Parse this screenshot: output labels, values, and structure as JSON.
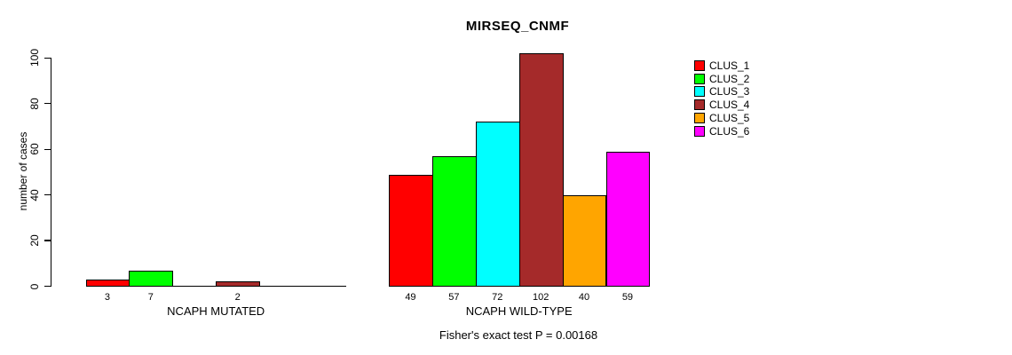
{
  "chart_data": {
    "type": "bar",
    "title": "MIRSEQ_CNMF",
    "ylabel": "number of cases",
    "ylim": [
      0,
      110
    ],
    "yticks": [
      0,
      20,
      40,
      60,
      80,
      100
    ],
    "grid": false,
    "legend_position": "right-outside",
    "legend": [
      {
        "label": "CLUS_1",
        "color": "#FF0000"
      },
      {
        "label": "CLUS_2",
        "color": "#00FF00"
      },
      {
        "label": "CLUS_3",
        "color": "#00FFFF"
      },
      {
        "label": "CLUS_4",
        "color": "#A52A2A"
      },
      {
        "label": "CLUS_5",
        "color": "#FFA500"
      },
      {
        "label": "CLUS_6",
        "color": "#FF00FF"
      }
    ],
    "groups": [
      {
        "label": "NCAPH MUTATED",
        "values": [
          3,
          7,
          0,
          2,
          0,
          0
        ],
        "bar_labels": [
          "3",
          "7",
          "",
          "2",
          "",
          ""
        ]
      },
      {
        "label": "NCAPH WILD-TYPE",
        "values": [
          49,
          57,
          72,
          102,
          40,
          59
        ],
        "bar_labels": [
          "49",
          "57",
          "72",
          "102",
          "40",
          "59"
        ]
      }
    ],
    "annotation": "Fisher's exact test P = 0.00168"
  }
}
